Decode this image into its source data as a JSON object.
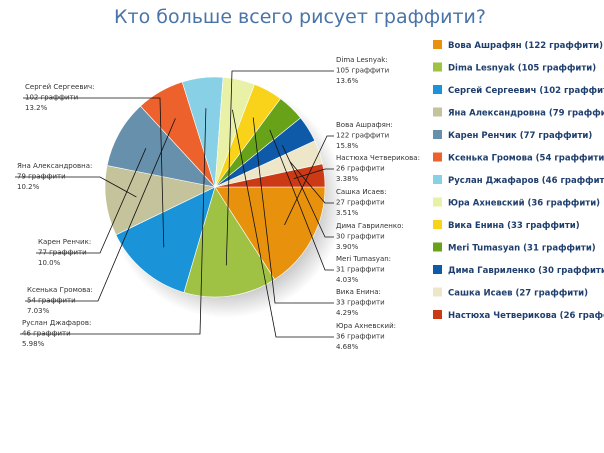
{
  "chart_data": {
    "type": "pie",
    "title": "Кто больше всего рисует граффити?",
    "value_suffix": "граффити",
    "series": [
      {
        "name": "Вова Ашрафян",
        "value": 122,
        "percent": "15.8%",
        "color": "#e8910c"
      },
      {
        "name": "Dima Lesnyak",
        "value": 105,
        "percent": "13.6%",
        "color": "#a0c244"
      },
      {
        "name": "Сергей Сергеевич",
        "value": 102,
        "percent": "13.2%",
        "color": "#1a93d8"
      },
      {
        "name": "Яна Александровна",
        "value": 79,
        "percent": "10.2%",
        "color": "#c4c39b"
      },
      {
        "name": "Карен Ренчик",
        "value": 77,
        "percent": "10.0%",
        "color": "#6790ac"
      },
      {
        "name": "Ксенька Громова",
        "value": 54,
        "percent": "7.03%",
        "color": "#ec612c"
      },
      {
        "name": "Руслан Джафаров",
        "value": 46,
        "percent": "5.98%",
        "color": "#87d0e6"
      },
      {
        "name": "Юра Ахневский",
        "value": 36,
        "percent": "4.68%",
        "color": "#e8f1a6"
      },
      {
        "name": "Вика Енина",
        "value": 33,
        "percent": "4.29%",
        "color": "#f8d31a"
      },
      {
        "name": "Meri Tumasyan",
        "value": 31,
        "percent": "4.03%",
        "color": "#68a219"
      },
      {
        "name": "Дима Гавриленко",
        "value": 30,
        "percent": "3.90%",
        "color": "#0f5aa8"
      },
      {
        "name": "Сашка Исаев",
        "value": 27,
        "percent": "3.51%",
        "color": "#ede6c9"
      },
      {
        "name": "Настюха Четверикова",
        "value": 26,
        "percent": "3.38%",
        "color": "#cc3a15"
      }
    ],
    "legend_position": "right"
  }
}
